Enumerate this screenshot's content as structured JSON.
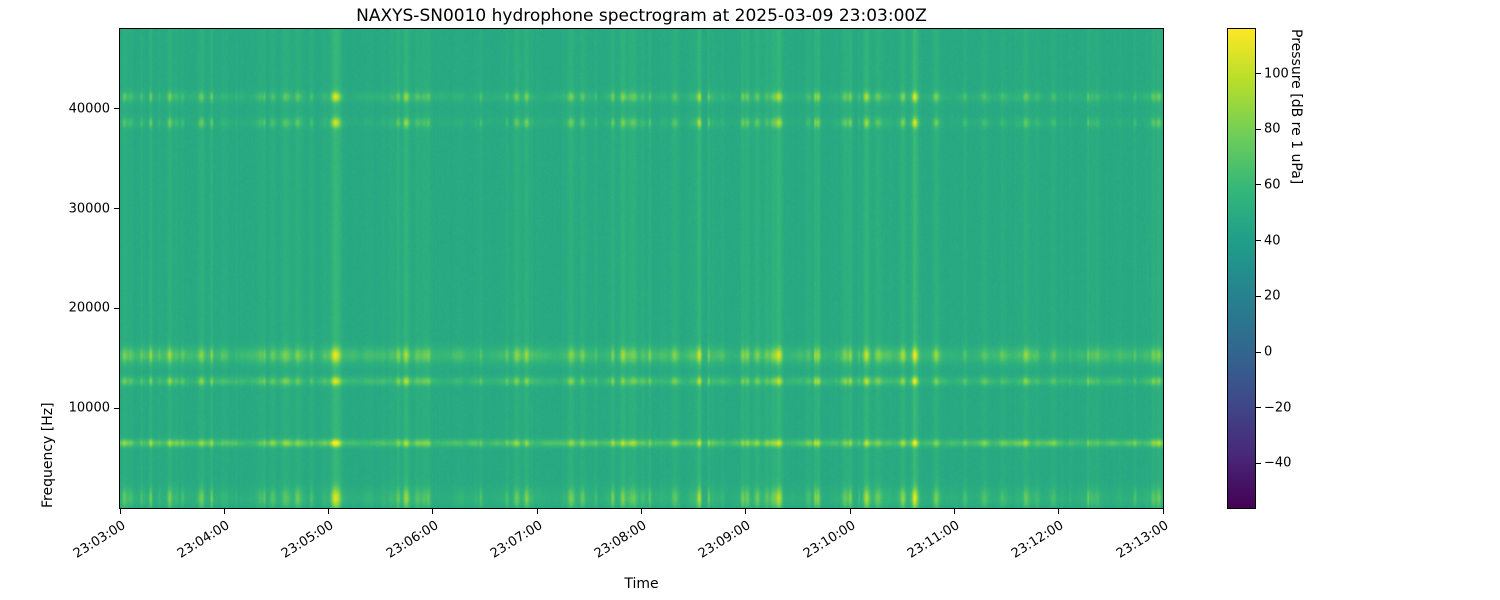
{
  "figure": {
    "title": "NAXYS-SN0010 hydrophone spectrogram at 2025-03-09 23:03:00Z",
    "xlabel": "Time",
    "ylabel": "Frequency [Hz]"
  },
  "chart_data": {
    "type": "heatmap",
    "title": "NAXYS-SN0010 hydrophone spectrogram at 2025-03-09 23:03:00Z",
    "xlabel": "Time",
    "ylabel": "Frequency [Hz]",
    "x_tick_labels": [
      "23:03:00",
      "23:04:00",
      "23:05:00",
      "23:06:00",
      "23:07:00",
      "23:08:00",
      "23:09:00",
      "23:10:00",
      "23:11:00",
      "23:12:00",
      "23:13:00"
    ],
    "y_ticks": [
      10000,
      20000,
      30000,
      40000
    ],
    "y_range_hz": [
      0,
      48000
    ],
    "time_span_seconds": 600,
    "grid": false,
    "colorbar": {
      "label": "Pressure [dB re 1 uPa]",
      "ticks": [
        100,
        80,
        60,
        40,
        20,
        0,
        -20,
        -40
      ],
      "vmin": -56,
      "vmax": 116,
      "colormap": "viridis",
      "viridis_stops": [
        "#440154",
        "#482878",
        "#3e4989",
        "#31688e",
        "#26828e",
        "#1f9e89",
        "#35b779",
        "#6ece58",
        "#b5de2b",
        "#fde725"
      ]
    },
    "background_level_db": 48,
    "pixel_noise_db": 2.6,
    "column_noise_db": 1.2,
    "tonal_bands": [
      {
        "freq_hz": 1000,
        "half_width_hz": 700,
        "boost_db": 4.5
      },
      {
        "freq_hz": 6500,
        "half_width_hz": 260,
        "boost_db": 18
      },
      {
        "freq_hz": 12700,
        "half_width_hz": 300,
        "boost_db": 10
      },
      {
        "freq_hz": 15300,
        "half_width_hz": 550,
        "boost_db": 12
      },
      {
        "freq_hz": 38600,
        "half_width_hz": 350,
        "boost_db": 2.5
      },
      {
        "freq_hz": 41200,
        "half_width_hz": 350,
        "boost_db": 5
      }
    ],
    "transients": {
      "count": 170,
      "min_boost_db": 2,
      "max_boost_db": 26,
      "seed": 42
    }
  }
}
